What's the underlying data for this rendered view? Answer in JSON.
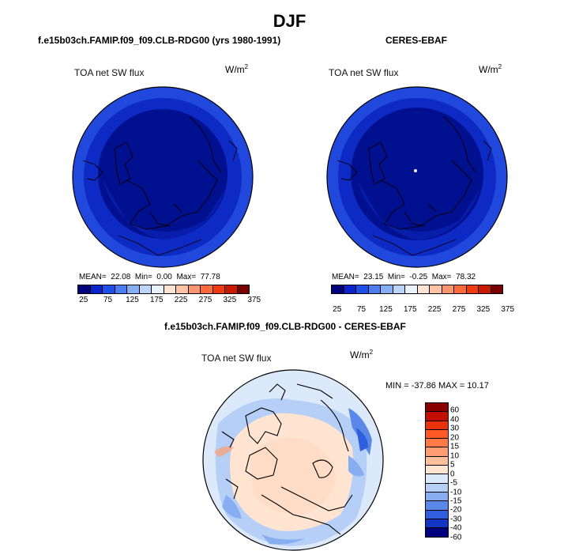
{
  "main_title": "DJF",
  "panels": [
    {
      "title": "f.e15b03ch.FAMIP.f09_f09.CLB-RDG00 (yrs 1980-1991)",
      "variable": "TOA net SW flux",
      "units_base": "W/m",
      "units_exp": "2",
      "stats": {
        "mean_label": "MEAN=",
        "mean": "22.08",
        "min_label": "Min=",
        "min": "0.00",
        "max_label": "Max=",
        "max": "77.78"
      },
      "map_region": "north-polar-stereographic"
    },
    {
      "title": "CERES-EBAF",
      "variable": "TOA net SW flux",
      "units_base": "W/m",
      "units_exp": "2",
      "stats": {
        "mean_label": "MEAN=",
        "mean": "23.15",
        "min_label": "Min=",
        "min": "-0.25",
        "max_label": "Max=",
        "max": "78.32"
      },
      "map_region": "north-polar-stereographic"
    },
    {
      "title": "f.e15b03ch.FAMIP.f09_f09.CLB-RDG00 - CERES-EBAF",
      "variable": "TOA net SW flux",
      "units_base": "W/m",
      "units_exp": "2",
      "minmax_text": "MIN = -37.86  MAX =  10.17",
      "map_region": "north-polar-stereographic"
    }
  ],
  "colorbar_abs": {
    "ticks": [
      "25",
      "75",
      "125",
      "175",
      "225",
      "275",
      "325",
      "375"
    ],
    "colors": [
      "#00007a",
      "#0a24c9",
      "#1f4fe6",
      "#4d7cf0",
      "#86aef5",
      "#bcd5fa",
      "#e9f2fe",
      "#ffe4d6",
      "#ffc2a6",
      "#ff9670",
      "#ff6a3d",
      "#f03a12",
      "#c91a00",
      "#7a0000"
    ]
  },
  "colorbar_diff": {
    "ticks": [
      "60",
      "40",
      "30",
      "20",
      "15",
      "10",
      "5",
      "0",
      "-5",
      "-10",
      "-15",
      "-20",
      "-30",
      "-40",
      "-60"
    ],
    "colors": [
      "#8a0000",
      "#c40f00",
      "#e8320b",
      "#ff5a26",
      "#ff7a45",
      "#ff9c70",
      "#ffbf9a",
      "#ffe4d2",
      "#dce9fb",
      "#b6cff6",
      "#87aef0",
      "#5a88e8",
      "#2f5fdc",
      "#1434c4",
      "#00007f"
    ]
  }
}
